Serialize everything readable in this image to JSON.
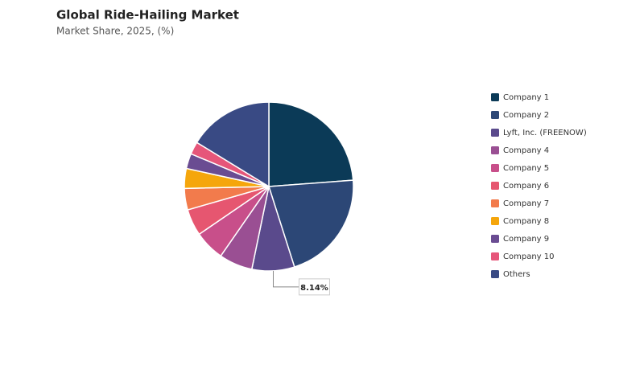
{
  "chart_data": {
    "type": "pie",
    "title": "Global Ride-Hailing Market",
    "subtitle": "Market Share, 2025, (%)",
    "categories": [
      "Company 1",
      "Company 2",
      "Lyft, Inc. (FREENOW)",
      "Company 4",
      "Company 5",
      "Company 6",
      "Company 7",
      "Company 8",
      "Company 9",
      "Company 10",
      "Others"
    ],
    "values": [
      23.8,
      21.3,
      8.14,
      6.4,
      5.8,
      5.1,
      4.1,
      3.8,
      2.9,
      2.4,
      16.26
    ],
    "value_labels": [
      null,
      null,
      "8.14%",
      null,
      null,
      null,
      null,
      null,
      null,
      null,
      null
    ],
    "colors": [
      "#0b3a57",
      "#2c4776",
      "#5a4a8c",
      "#9a4f93",
      "#c84f8a",
      "#e65670",
      "#f27b4c",
      "#f5a60c",
      "#6a4c92",
      "#e6567a",
      "#394a84"
    ],
    "legend": "right"
  }
}
